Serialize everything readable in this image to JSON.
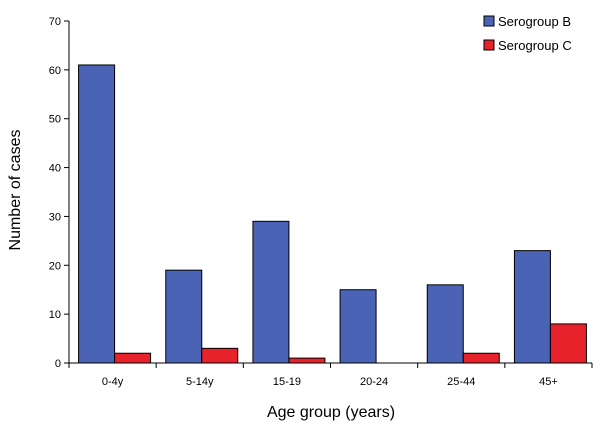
{
  "chart_data": {
    "type": "bar",
    "title": "",
    "xlabel": "Age group (years)",
    "ylabel": "Number of cases",
    "ylim": [
      0,
      70
    ],
    "yticks": [
      0,
      10,
      20,
      30,
      40,
      50,
      60,
      70
    ],
    "grid": false,
    "legend_position": "top-right",
    "categories": [
      "0-4y",
      "5-14y",
      "15-19",
      "20-24",
      "25-44",
      "45+"
    ],
    "series": [
      {
        "name": "Serogroup B",
        "color": "#4a63b5",
        "values": [
          61,
          19,
          29,
          15,
          16,
          23
        ]
      },
      {
        "name": "Serogroup C",
        "color": "#e8222a",
        "values": [
          2,
          3,
          1,
          0,
          2,
          8
        ]
      }
    ]
  }
}
